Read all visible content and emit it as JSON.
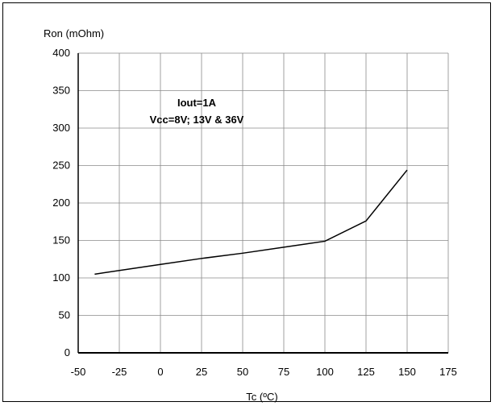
{
  "chart_data": {
    "type": "line",
    "ylabel": "Ron (mOhm)",
    "xlabel": "Tc (ºC)",
    "xlim": [
      -50,
      175
    ],
    "ylim": [
      0,
      400
    ],
    "x_ticks": [
      -50,
      -25,
      0,
      25,
      50,
      75,
      100,
      125,
      150,
      175
    ],
    "y_ticks": [
      0,
      50,
      100,
      150,
      200,
      250,
      300,
      350,
      400
    ],
    "grid": true,
    "annotations": [
      "Iout=1A",
      "Vcc=8V; 13V & 36V"
    ],
    "series": [
      {
        "x": [
          -40,
          0,
          25,
          50,
          75,
          100,
          125,
          150
        ],
        "y": [
          105,
          118,
          126,
          133,
          141,
          149,
          176,
          244
        ]
      }
    ]
  }
}
